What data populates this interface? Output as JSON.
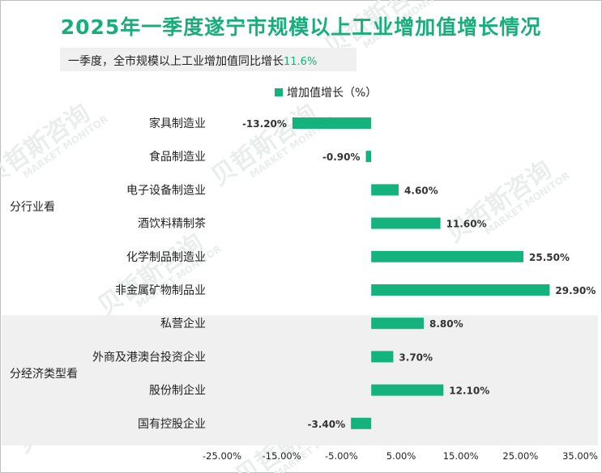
{
  "chart_data": {
    "type": "bar",
    "orientation": "horizontal",
    "title": "2025年一季度遂宁市规模以上工业增加值增长情况",
    "subtitle": {
      "prefix": "一季度，全市规模以上工业增加值同比增长",
      "value": "11.6%"
    },
    "legend": "增加值增长（%）",
    "bar_color": "#14b37d",
    "categories": [
      "家具制造业",
      "食品制造业",
      "电子设备制造业",
      "酒饮料精制茶",
      "化学制品制造业",
      "非金属矿物制品业",
      "私营企业",
      "外商及港澳台投资企业",
      "股份制企业",
      "国有控股企业"
    ],
    "values": [
      -13.2,
      -0.9,
      4.6,
      11.6,
      25.5,
      29.9,
      8.8,
      3.7,
      12.1,
      -3.4
    ],
    "value_labels": [
      "-13.20%",
      "-0.90%",
      "4.60%",
      "11.60%",
      "25.50%",
      "29.90%",
      "8.80%",
      "3.70%",
      "12.10%",
      "-3.40%"
    ],
    "groups": [
      {
        "label": "分行业看",
        "count": 6
      },
      {
        "label": "分经济类型看",
        "count": 4
      }
    ],
    "xlim": [
      -25,
      35
    ],
    "xticks": [
      "-25.00%",
      "-15.00%",
      "-5.00%",
      "5.00%",
      "15.00%",
      "25.00%",
      "35.00%"
    ],
    "xtick_values": [
      -25,
      -15,
      -5,
      5,
      15,
      25,
      35
    ]
  },
  "watermark": {
    "cn": "贝哲斯咨询",
    "en": "MARKET MONITOR"
  },
  "colors": {
    "title": "#1aad7c",
    "group_band": "#f0f0f0"
  }
}
